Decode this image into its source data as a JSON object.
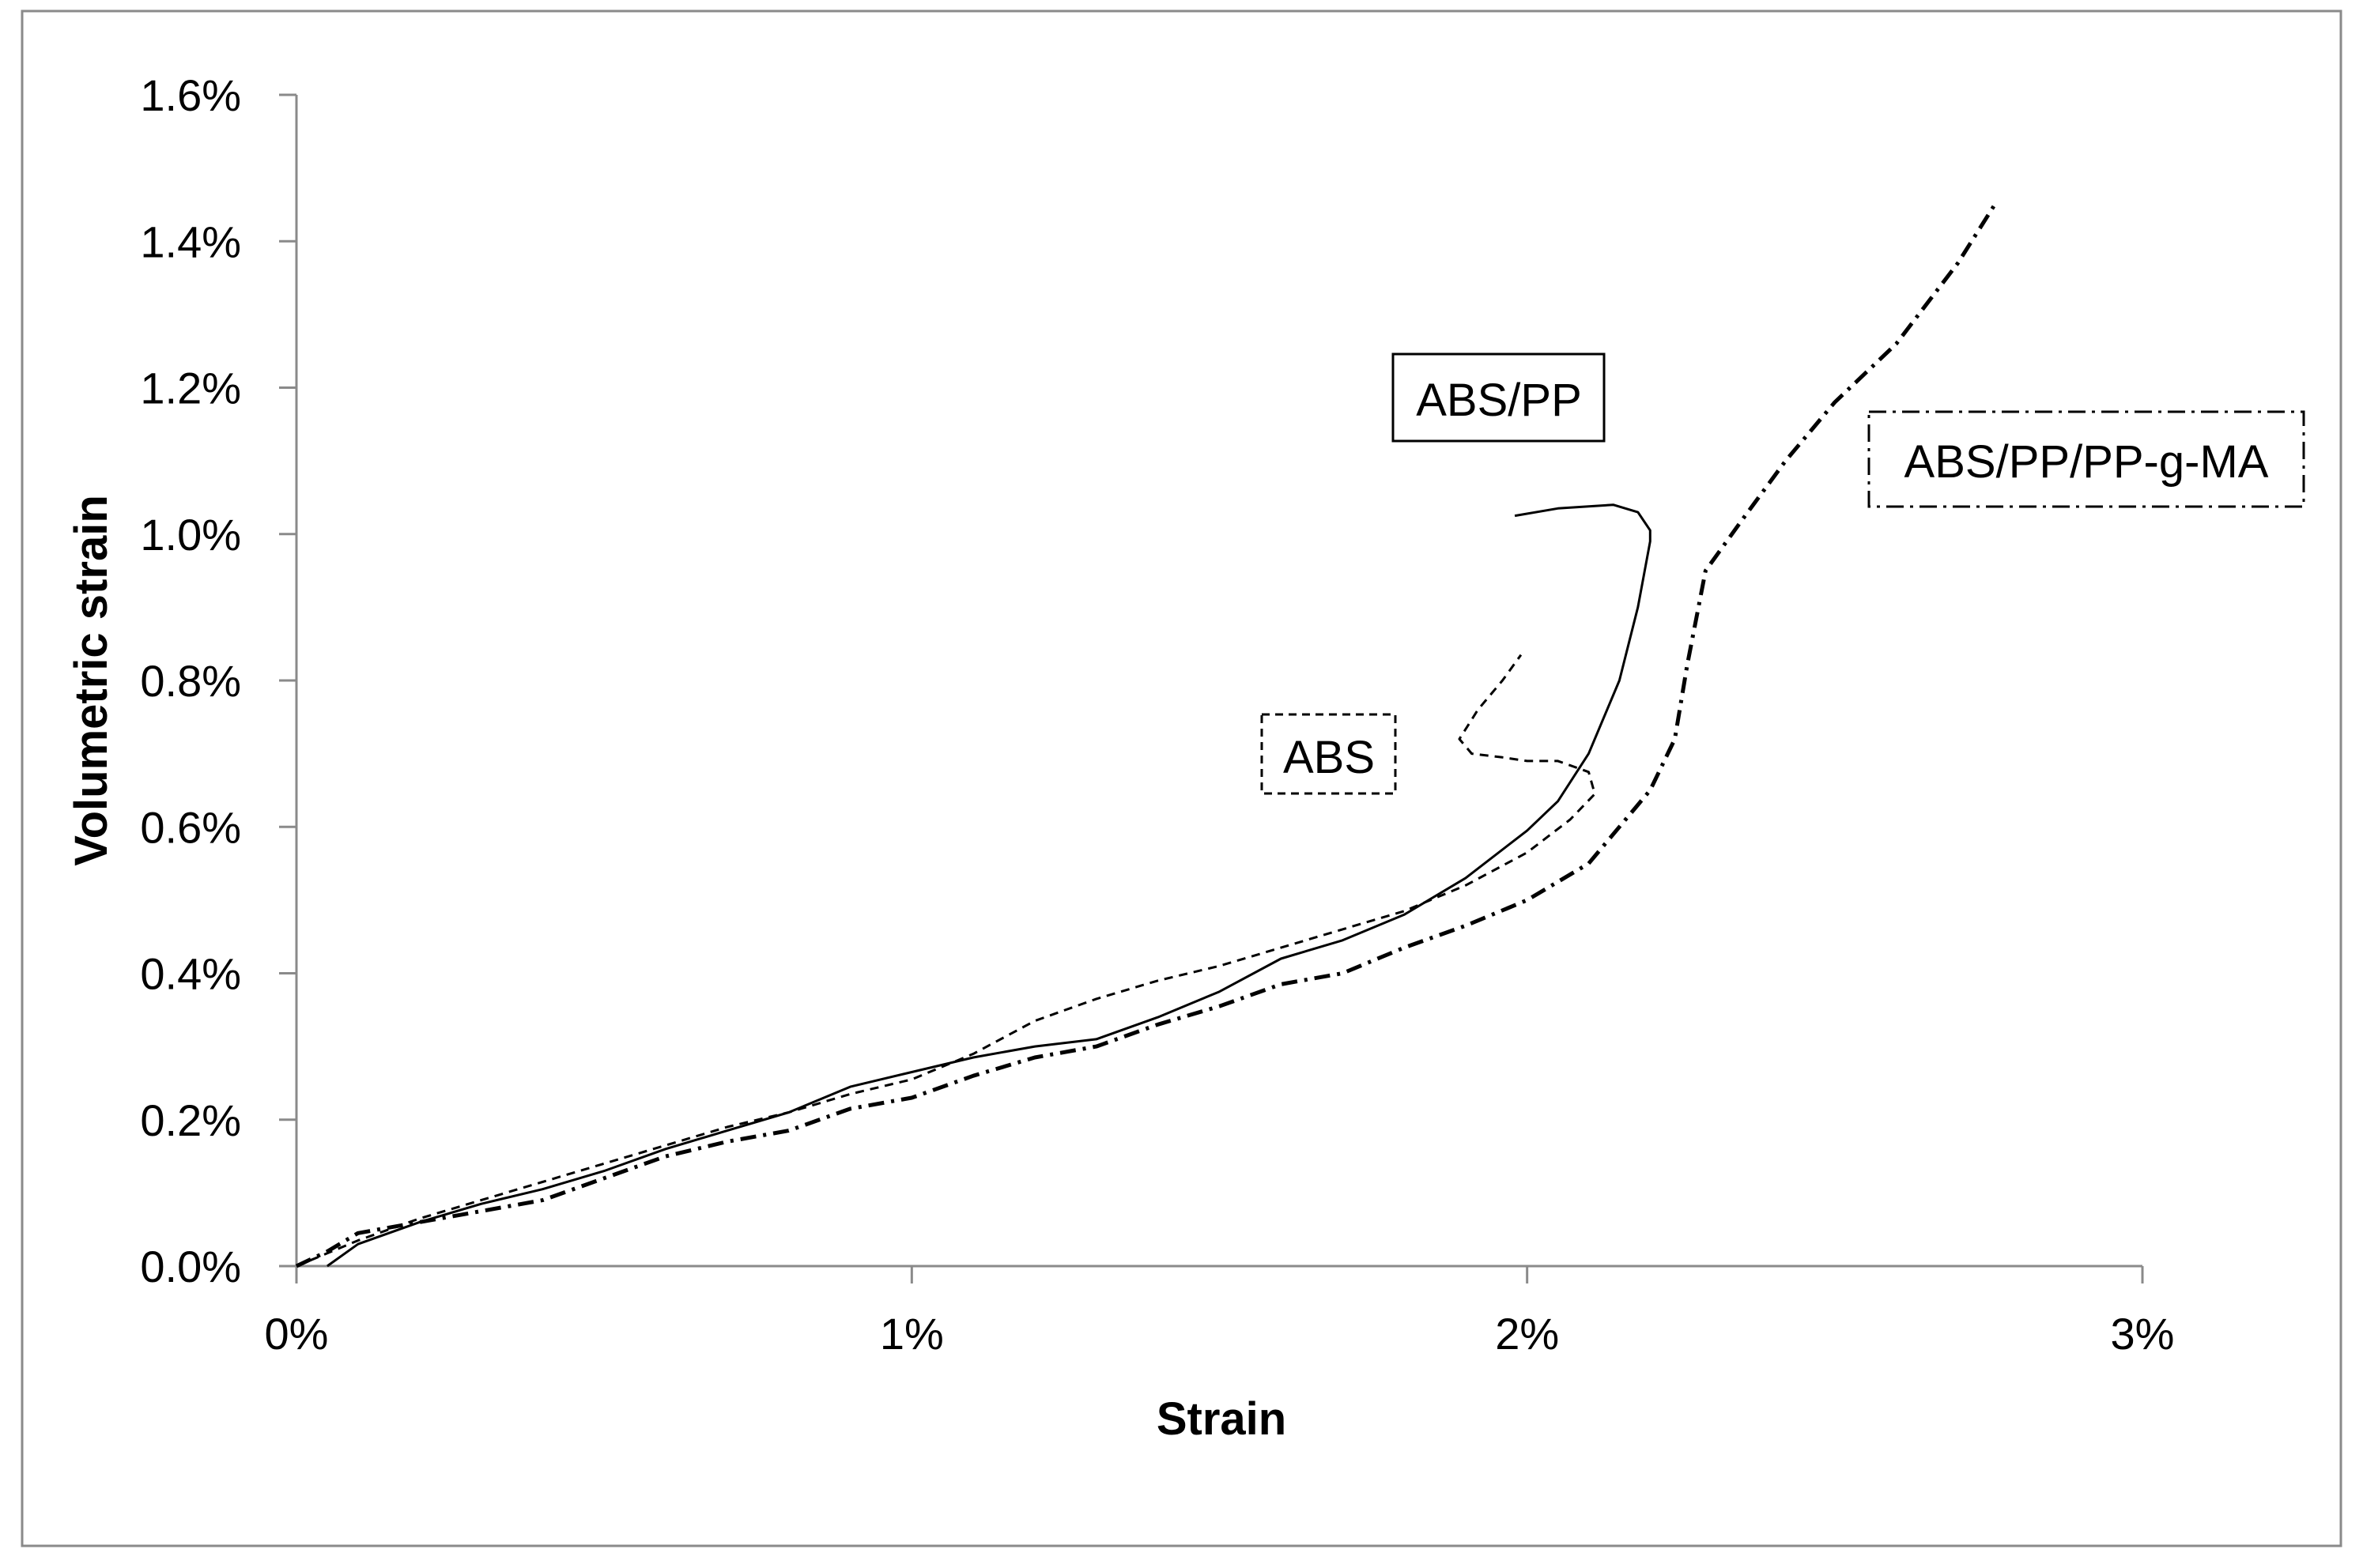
{
  "chart_data": {
    "type": "line",
    "title": "",
    "xlabel": "Strain",
    "ylabel": "Volumetric strain",
    "xlim": [
      0,
      3
    ],
    "ylim": [
      0,
      1.6
    ],
    "x_unit": "%",
    "y_unit": "%",
    "x_ticks": [
      "0%",
      "1%",
      "2%",
      "3%"
    ],
    "y_ticks": [
      "0.0%",
      "0.2%",
      "0.4%",
      "0.6%",
      "0.8%",
      "1.0%",
      "1.2%",
      "1.4%",
      "1.6%"
    ],
    "grid": false,
    "series": [
      {
        "line_style": "solid",
        "color": "#000000",
        "points": [
          [
            0.05,
            0.0
          ],
          [
            0.1,
            0.03
          ],
          [
            0.2,
            0.06
          ],
          [
            0.3,
            0.085
          ],
          [
            0.4,
            0.105
          ],
          [
            0.5,
            0.13
          ],
          [
            0.6,
            0.16
          ],
          [
            0.7,
            0.185
          ],
          [
            0.8,
            0.21
          ],
          [
            0.9,
            0.245
          ],
          [
            1.0,
            0.265
          ],
          [
            1.1,
            0.285
          ],
          [
            1.2,
            0.3
          ],
          [
            1.3,
            0.31
          ],
          [
            1.4,
            0.34
          ],
          [
            1.5,
            0.375
          ],
          [
            1.6,
            0.42
          ],
          [
            1.7,
            0.445
          ],
          [
            1.8,
            0.48
          ],
          [
            1.9,
            0.53
          ],
          [
            2.0,
            0.595
          ],
          [
            2.05,
            0.635
          ],
          [
            2.1,
            0.7
          ],
          [
            2.15,
            0.8
          ],
          [
            2.18,
            0.9
          ],
          [
            2.2,
            0.99
          ],
          [
            2.2,
            1.005
          ],
          [
            2.18,
            1.03
          ],
          [
            2.14,
            1.04
          ],
          [
            2.05,
            1.035
          ],
          [
            1.98,
            1.025
          ]
        ]
      },
      {
        "line_style": "dashed",
        "color": "#000000",
        "points": [
          [
            0.0,
            0.0
          ],
          [
            0.1,
            0.035
          ],
          [
            0.2,
            0.065
          ],
          [
            0.3,
            0.09
          ],
          [
            0.4,
            0.115
          ],
          [
            0.5,
            0.14
          ],
          [
            0.6,
            0.165
          ],
          [
            0.7,
            0.19
          ],
          [
            0.8,
            0.21
          ],
          [
            0.9,
            0.235
          ],
          [
            1.0,
            0.255
          ],
          [
            1.1,
            0.29
          ],
          [
            1.2,
            0.335
          ],
          [
            1.3,
            0.365
          ],
          [
            1.4,
            0.39
          ],
          [
            1.5,
            0.41
          ],
          [
            1.6,
            0.435
          ],
          [
            1.7,
            0.46
          ],
          [
            1.8,
            0.485
          ],
          [
            1.9,
            0.52
          ],
          [
            2.0,
            0.565
          ],
          [
            2.07,
            0.61
          ],
          [
            2.11,
            0.645
          ],
          [
            2.1,
            0.675
          ],
          [
            2.05,
            0.69
          ],
          [
            2.0,
            0.69
          ],
          [
            1.96,
            0.695
          ],
          [
            1.91,
            0.7
          ],
          [
            1.89,
            0.72
          ],
          [
            1.92,
            0.76
          ],
          [
            1.96,
            0.8
          ],
          [
            1.99,
            0.835
          ]
        ]
      },
      {
        "line_style": "dash-dot",
        "color": "#000000",
        "points": [
          [
            0.0,
            0.0
          ],
          [
            0.05,
            0.02
          ],
          [
            0.1,
            0.045
          ],
          [
            0.2,
            0.06
          ],
          [
            0.3,
            0.075
          ],
          [
            0.4,
            0.09
          ],
          [
            0.5,
            0.12
          ],
          [
            0.6,
            0.15
          ],
          [
            0.7,
            0.17
          ],
          [
            0.8,
            0.185
          ],
          [
            0.9,
            0.215
          ],
          [
            1.0,
            0.23
          ],
          [
            1.1,
            0.26
          ],
          [
            1.2,
            0.285
          ],
          [
            1.3,
            0.3
          ],
          [
            1.4,
            0.33
          ],
          [
            1.5,
            0.355
          ],
          [
            1.6,
            0.385
          ],
          [
            1.7,
            0.4
          ],
          [
            1.8,
            0.435
          ],
          [
            1.9,
            0.465
          ],
          [
            2.0,
            0.5
          ],
          [
            2.1,
            0.55
          ],
          [
            2.2,
            0.65
          ],
          [
            2.24,
            0.72
          ],
          [
            2.26,
            0.82
          ],
          [
            2.29,
            0.95
          ],
          [
            2.35,
            1.02
          ],
          [
            2.42,
            1.1
          ],
          [
            2.5,
            1.18
          ],
          [
            2.6,
            1.26
          ],
          [
            2.7,
            1.37
          ],
          [
            2.76,
            1.45
          ]
        ]
      }
    ],
    "annotations": [
      {
        "text": "ABS/PP",
        "border": "solid"
      },
      {
        "text": "ABS",
        "border": "dashed"
      },
      {
        "text": "ABS/PP/PP-g-MA",
        "border": "dash-dot"
      }
    ]
  }
}
